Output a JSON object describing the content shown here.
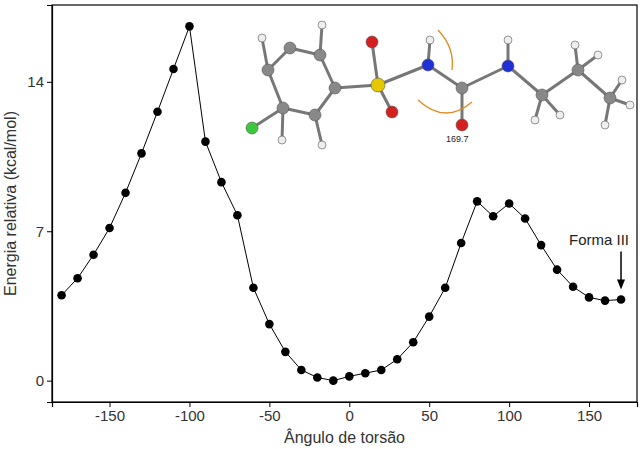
{
  "chart_data": {
    "type": "line",
    "x_label": "Ângulo de torsão",
    "y_label": "Energia relativa (kcal/mol)",
    "x": [
      -180,
      -170,
      -160,
      -150,
      -140,
      -130,
      -120,
      -110,
      -100,
      -90,
      -80,
      -70,
      -60,
      -50,
      -40,
      -30,
      -20,
      -10,
      0,
      10,
      20,
      30,
      40,
      50,
      60,
      70,
      80,
      90,
      100,
      110,
      120,
      130,
      140,
      150,
      160,
      170
    ],
    "values": [
      4.0,
      4.8,
      5.9,
      7.15,
      8.8,
      10.65,
      12.6,
      14.6,
      16.6,
      11.2,
      9.3,
      7.75,
      4.35,
      2.65,
      1.35,
      0.5,
      0.15,
      0.0,
      0.2,
      0.35,
      0.5,
      1.0,
      1.8,
      3.0,
      4.35,
      6.45,
      8.4,
      7.7,
      8.3,
      7.6,
      6.35,
      5.2,
      4.4,
      3.9,
      3.75,
      3.8
    ],
    "color": "#000000",
    "marker": "circle",
    "line_style": "solid",
    "xlim": [
      -186,
      180
    ],
    "xticks": [
      -150,
      -100,
      -50,
      0,
      50,
      100,
      150
    ],
    "ylim": [
      -1,
      17.6
    ],
    "yticks": [
      0,
      7,
      14
    ],
    "grid": false,
    "annotations": [
      {
        "text": "Forma III",
        "x": 170,
        "y": 3.8
      },
      {
        "text": "169.7"
      }
    ]
  }
}
